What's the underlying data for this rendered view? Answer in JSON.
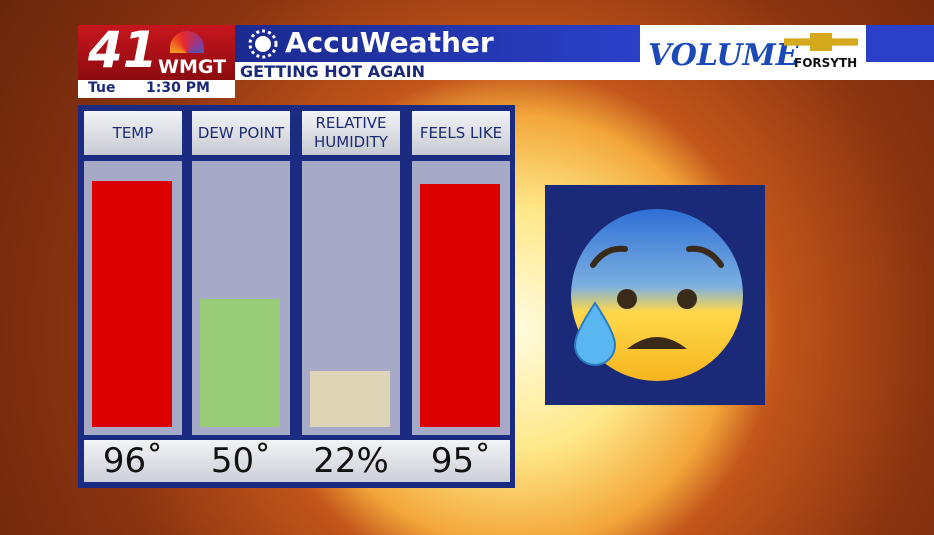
{
  "header": {
    "channel": "41",
    "station": "WMGT",
    "day": "Tue",
    "time": "1:30 PM",
    "brand": "AccuWeather",
    "headline": "GETTING HOT AGAIN",
    "sponsor": "VOLUME",
    "sponsor_location": "FORSYTH"
  },
  "chart_data": {
    "type": "bar",
    "categories": [
      "TEMP",
      "DEW POINT",
      "RELATIVE HUMIDITY",
      "FEELS LIKE"
    ],
    "values": [
      96,
      50,
      22,
      95
    ],
    "value_labels": [
      "96˚",
      "50˚",
      "22%",
      "95˚"
    ],
    "colors": [
      "#dc0000",
      "#99cc77",
      "#ddd5b5",
      "#dc0000"
    ]
  }
}
